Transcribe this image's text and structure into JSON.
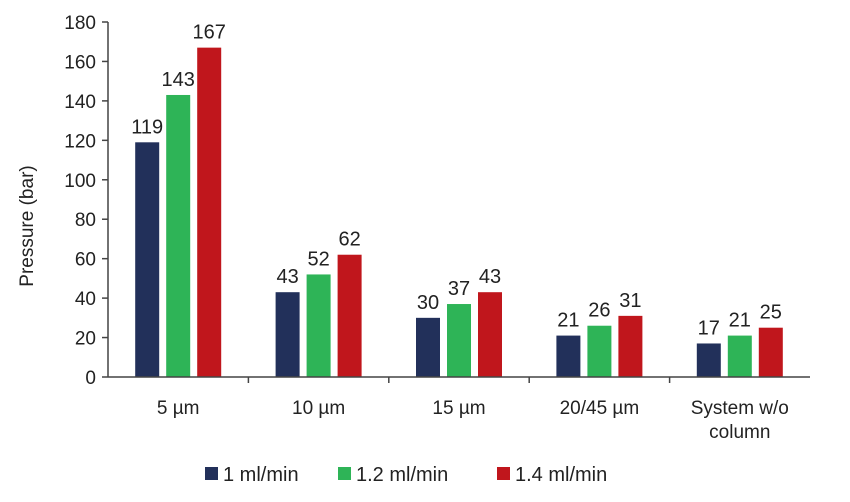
{
  "chart_data": {
    "type": "bar",
    "title": "",
    "xlabel": "",
    "ylabel": "Pressure (bar)",
    "ylim": [
      0,
      180
    ],
    "yticks": [
      0,
      20,
      40,
      60,
      80,
      100,
      120,
      140,
      160,
      180
    ],
    "grid": false,
    "legend_position": "bottom",
    "categories": [
      [
        "5 µm"
      ],
      [
        "10 µm"
      ],
      [
        "15 µm"
      ],
      [
        "20/45 µm"
      ],
      [
        "System w/o",
        "column"
      ]
    ],
    "series": [
      {
        "name": "1 ml/min",
        "color": "#22305a",
        "values": [
          119,
          43,
          30,
          21,
          17
        ]
      },
      {
        "name": "1.2 ml/min",
        "color": "#2eb457",
        "values": [
          143,
          52,
          37,
          26,
          21
        ]
      },
      {
        "name": "1.4 ml/min",
        "color": "#c0161c",
        "values": [
          167,
          62,
          43,
          31,
          25
        ]
      }
    ]
  }
}
